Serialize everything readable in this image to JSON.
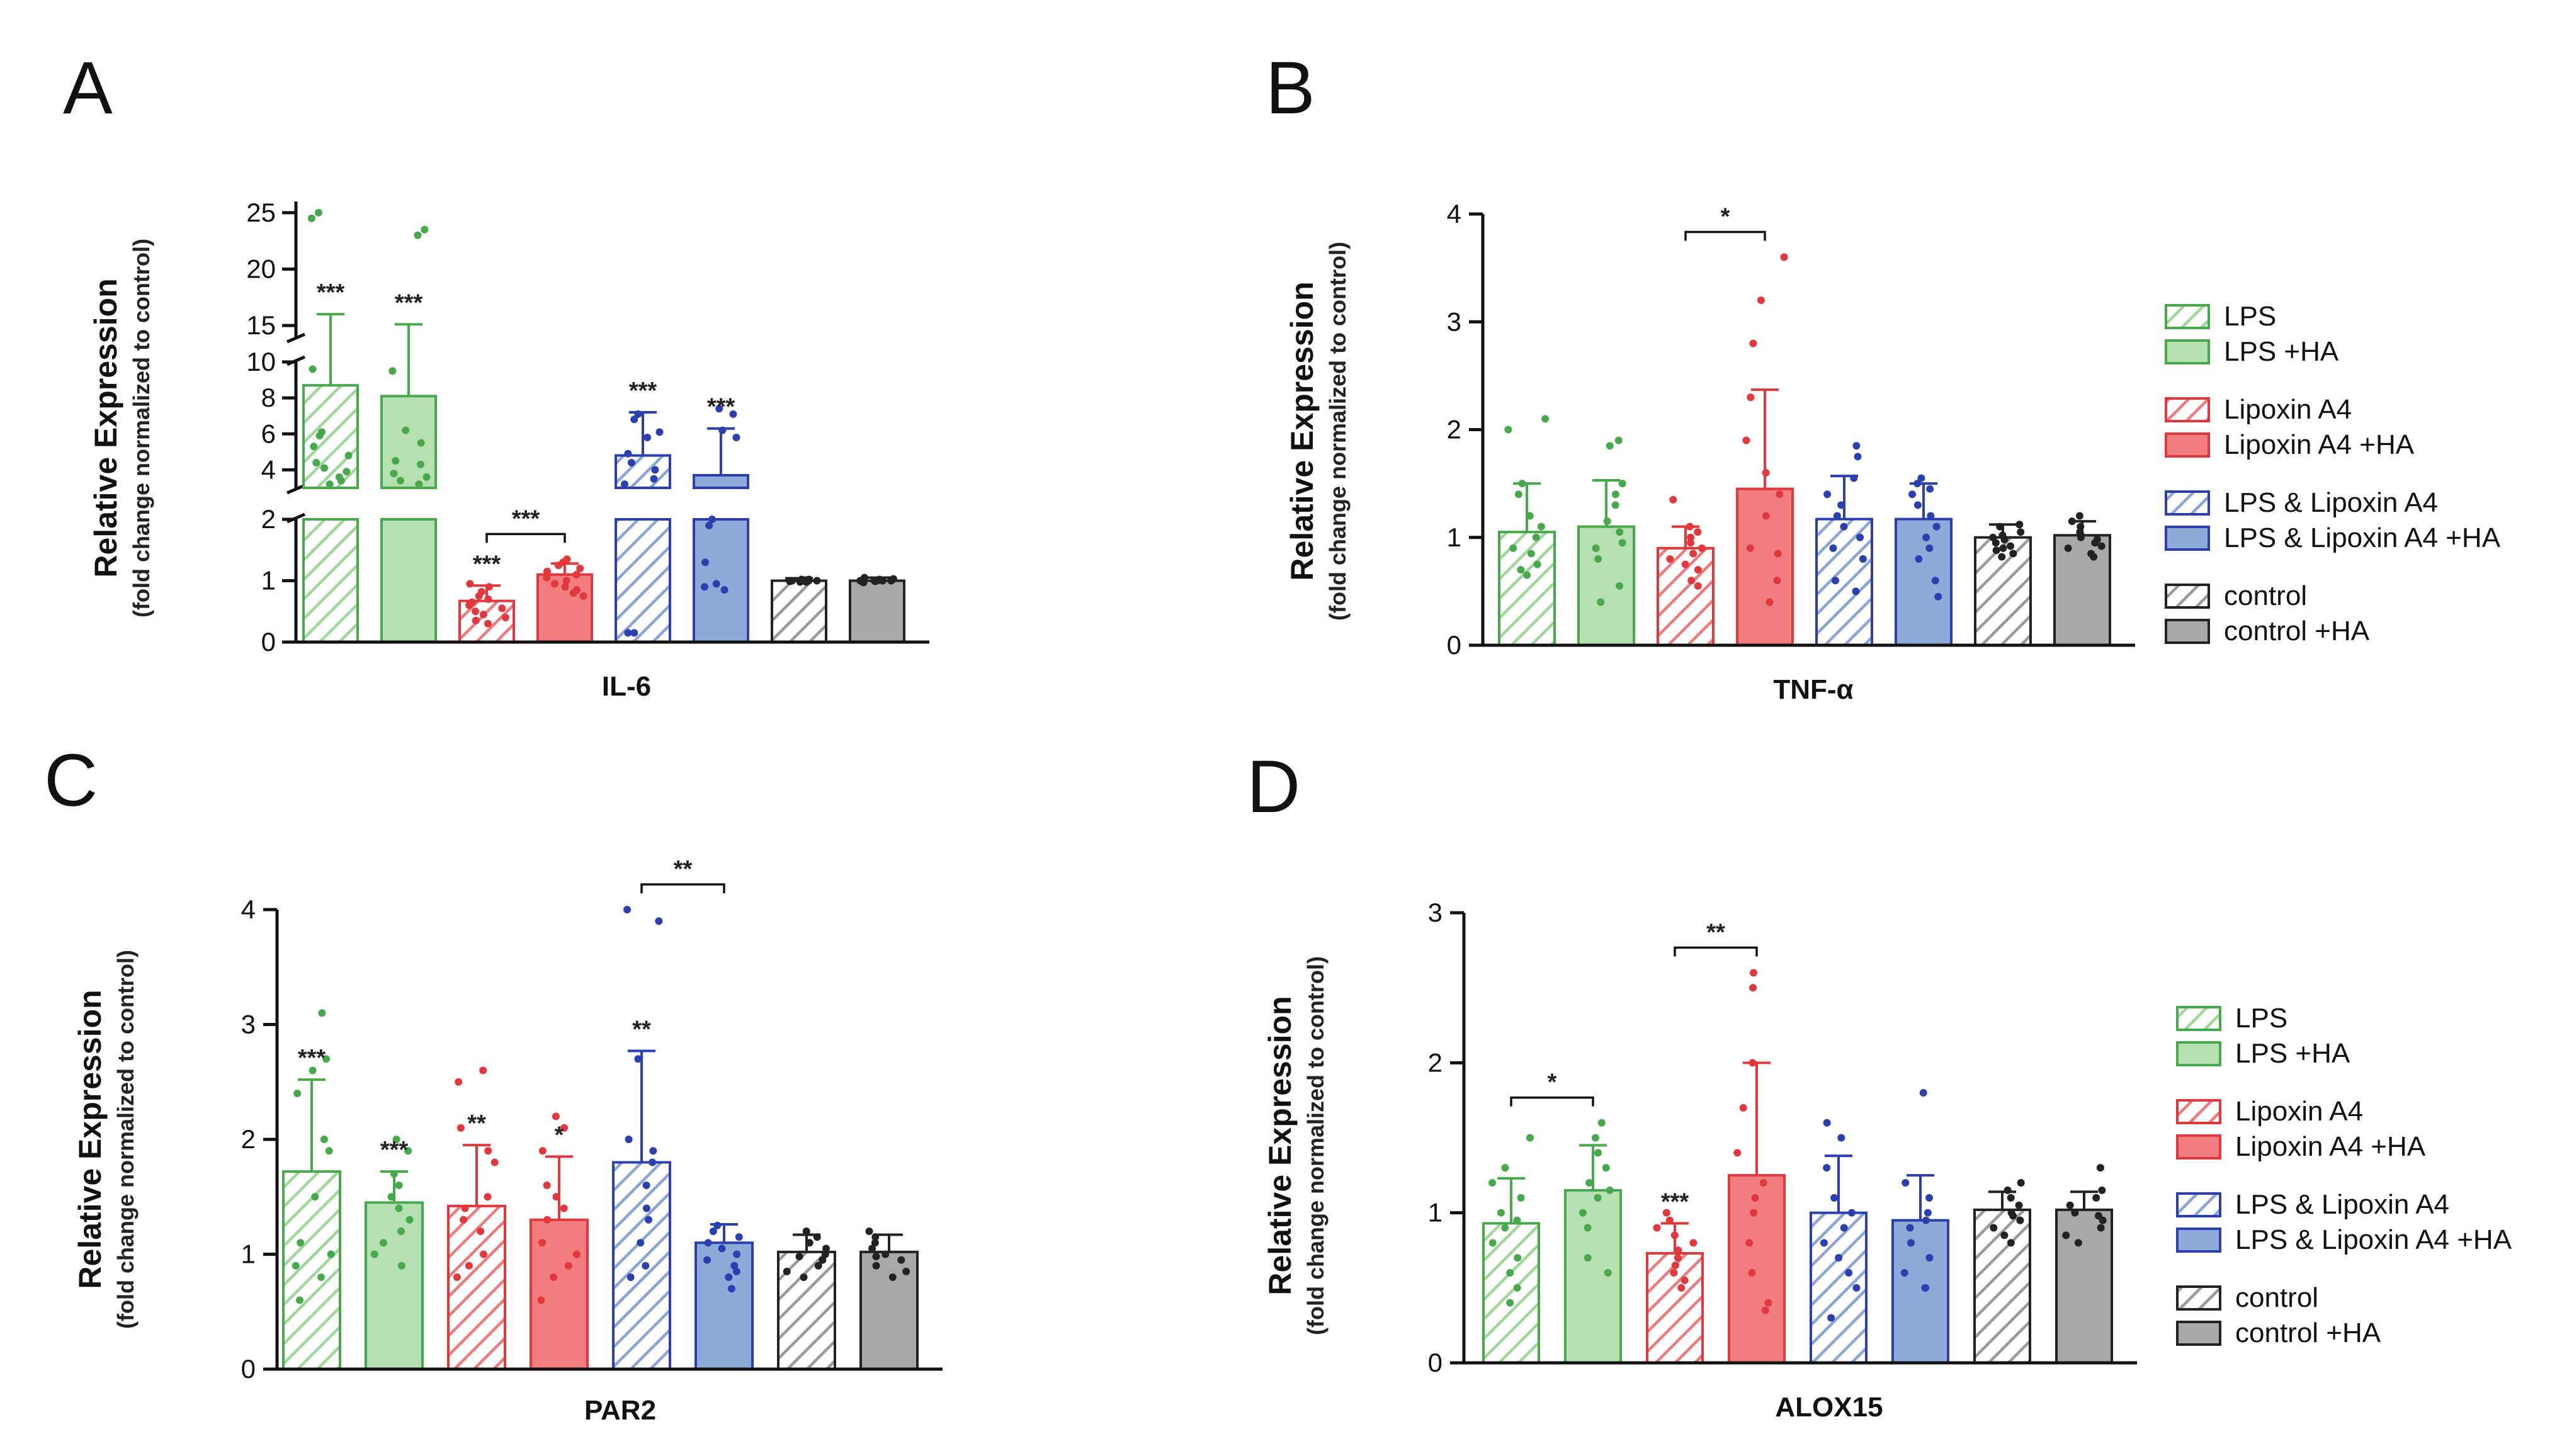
{
  "colors": {
    "LPS": "#47a84c",
    "LPS_fill": "#b6e0b2",
    "LXA": "#e0383c",
    "LXA_fill": "#f17d7f",
    "COMBO": "#2b3fae",
    "COMBO_fill": "#8eaad9",
    "CTRL": "#222222",
    "CTRL_fill": "#a8a8a8"
  },
  "legend": [
    {
      "label": "LPS",
      "group": "LPS",
      "hatch": true
    },
    {
      "label": "LPS +HA",
      "group": "LPS",
      "hatch": false
    },
    {
      "label": "Lipoxin A4",
      "group": "LXA",
      "hatch": true
    },
    {
      "label": "Lipoxin A4 +HA",
      "group": "LXA",
      "hatch": false
    },
    {
      "label": "LPS & Lipoxin A4",
      "group": "COMBO",
      "hatch": true
    },
    {
      "label": "LPS & Lipoxin A4 +HA",
      "group": "COMBO",
      "hatch": false
    },
    {
      "label": "control",
      "group": "CTRL",
      "hatch": true
    },
    {
      "label": "control +HA",
      "group": "CTRL",
      "hatch": false
    }
  ],
  "chart_data": [
    {
      "panel": "A",
      "type": "bar",
      "title": "",
      "xlabel": "IL-6",
      "ylabel": "Relative Expression",
      "ylabel_sub": "(fold change normalized to control)",
      "broken_axis": true,
      "segments": [
        {
          "range": [
            0,
            2
          ],
          "ticks": [
            "0",
            "1",
            "2"
          ]
        },
        {
          "range": [
            3,
            10
          ],
          "ticks": [
            "4",
            "6",
            "8",
            "10"
          ]
        },
        {
          "range": [
            14,
            26
          ],
          "ticks": [
            "15",
            "20",
            "25"
          ]
        }
      ],
      "categories": [
        "LPS",
        "LPS +HA",
        "Lipoxin A4",
        "Lipoxin A4 +HA",
        "LPS & Lipoxin A4",
        "LPS & Lipoxin A4 +HA",
        "control",
        "control +HA"
      ],
      "values": [
        8.7,
        8.1,
        0.67,
        1.1,
        4.8,
        3.7,
        1.0,
        1.0
      ],
      "errors": [
        7.3,
        7.0,
        0.25,
        0.18,
        2.4,
        2.6,
        0.04,
        0.05
      ],
      "points": [
        [
          24.5,
          25,
          9.6,
          6.1,
          5.9,
          5.3,
          4.8,
          4.4,
          4.1,
          3.9,
          3.6,
          3.4,
          3.2
        ],
        [
          23.5,
          23,
          9.5,
          6.2,
          5.5,
          4.5,
          4.3,
          3.8,
          3.6,
          3.4,
          3.2
        ],
        [
          0.95,
          0.9,
          0.82,
          0.75,
          0.7,
          0.65,
          0.6,
          0.55,
          0.5,
          0.45,
          0.4,
          0.35,
          0.3
        ],
        [
          1.35,
          1.3,
          1.25,
          1.2,
          1.15,
          1.1,
          1.05,
          1.0,
          0.95,
          0.9,
          0.85,
          0.8,
          0.75
        ],
        [
          7.1,
          6.8,
          6.1,
          5.8,
          4.9,
          4.4,
          4.0,
          3.5,
          3.2,
          0.15,
          0.15
        ],
        [
          7.4,
          7.1,
          6.2,
          5.8,
          2.0,
          1.9,
          1.3,
          0.95,
          0.9,
          0.85
        ],
        [
          1.0,
          1.0,
          1.02,
          0.98,
          1.0,
          1.01,
          0.99,
          1.0,
          1.0,
          1.0,
          1.02,
          0.98
        ],
        [
          1.05,
          1.0,
          1.02,
          0.98,
          1.0,
          1.03,
          0.97,
          1.0,
          1.0,
          1.01,
          0.99,
          1.0
        ]
      ],
      "significance": [
        "***",
        "***",
        "***",
        "",
        "***",
        "***",
        "",
        ""
      ],
      "brackets": [
        {
          "from": 2,
          "to": 3,
          "label": "***"
        }
      ]
    },
    {
      "panel": "B",
      "type": "bar",
      "title": "",
      "xlabel": "TNF-α",
      "ylabel": "Relative Expression",
      "ylabel_sub": "(fold change normalized to control)",
      "ylim": [
        0,
        4
      ],
      "yticks": [
        "0",
        "1",
        "2",
        "3",
        "4"
      ],
      "categories": [
        "LPS",
        "LPS +HA",
        "Lipoxin A4",
        "Lipoxin A4 +HA",
        "LPS & Lipoxin A4",
        "LPS & Lipoxin A4 +HA",
        "control",
        "control +HA"
      ],
      "values": [
        1.05,
        1.1,
        0.9,
        1.45,
        1.17,
        1.17,
        1.0,
        1.02
      ],
      "errors": [
        0.45,
        0.43,
        0.2,
        0.92,
        0.4,
        0.33,
        0.12,
        0.13
      ],
      "points": [
        [
          2.1,
          2.0,
          1.5,
          1.4,
          1.2,
          1.1,
          1.0,
          0.9,
          0.85,
          0.75,
          0.7,
          0.65
        ],
        [
          1.9,
          1.85,
          1.5,
          1.4,
          1.3,
          1.15,
          1.05,
          0.95,
          0.9,
          0.8,
          0.55,
          0.4
        ],
        [
          1.35,
          1.1,
          1.05,
          1.0,
          0.95,
          0.9,
          0.85,
          0.8,
          0.75,
          0.7,
          0.6,
          0.55
        ],
        [
          3.6,
          3.2,
          2.8,
          2.3,
          1.9,
          1.6,
          1.4,
          1.2,
          0.9,
          0.85,
          0.6,
          0.4
        ],
        [
          1.85,
          1.75,
          1.55,
          1.4,
          1.3,
          1.2,
          1.1,
          1.0,
          0.9,
          0.8,
          0.6,
          0.5
        ],
        [
          1.55,
          1.5,
          1.45,
          1.4,
          1.3,
          1.2,
          1.1,
          1.0,
          0.9,
          0.8,
          0.6,
          0.45
        ],
        [
          1.12,
          1.1,
          1.05,
          1.02,
          1.0,
          0.98,
          0.95,
          0.92,
          0.9,
          0.88,
          0.85,
          0.82
        ],
        [
          1.2,
          1.15,
          1.1,
          1.05,
          1.02,
          1.0,
          0.98,
          0.95,
          0.92,
          0.9,
          0.85,
          0.82
        ]
      ],
      "significance": [
        "",
        "",
        "",
        "",
        "",
        "",
        "",
        ""
      ],
      "brackets": [
        {
          "from": 2,
          "to": 3,
          "label": "*"
        }
      ]
    },
    {
      "panel": "C",
      "type": "bar",
      "title": "",
      "xlabel": "PAR2",
      "ylabel": "Relative Expression",
      "ylabel_sub": "(fold change normalized to control)",
      "ylim": [
        0,
        4
      ],
      "yticks": [
        "0",
        "1",
        "2",
        "3",
        "4"
      ],
      "categories": [
        "LPS",
        "LPS +HA",
        "Lipoxin A4",
        "Lipoxin A4 +HA",
        "LPS & Lipoxin A4",
        "LPS & Lipoxin A4 +HA",
        "control",
        "control +HA"
      ],
      "values": [
        1.72,
        1.45,
        1.42,
        1.3,
        1.8,
        1.1,
        1.02,
        1.02
      ],
      "errors": [
        0.8,
        0.27,
        0.53,
        0.55,
        0.97,
        0.16,
        0.15,
        0.15
      ],
      "points": [
        [
          3.1,
          2.7,
          2.6,
          2.4,
          2.0,
          1.9,
          1.5,
          1.1,
          1.0,
          0.9,
          0.8,
          0.6
        ],
        [
          2.0,
          1.9,
          1.7,
          1.6,
          1.5,
          1.4,
          1.3,
          1.2,
          1.1,
          1.0,
          0.9
        ],
        [
          2.6,
          2.5,
          2.1,
          1.9,
          1.8,
          1.5,
          1.4,
          1.3,
          1.2,
          1.0,
          0.9,
          0.8
        ],
        [
          2.2,
          2.1,
          1.9,
          1.6,
          1.5,
          1.4,
          1.3,
          1.1,
          1.0,
          0.9,
          0.8,
          0.6
        ],
        [
          4.0,
          3.9,
          2.7,
          2.0,
          1.9,
          1.8,
          1.6,
          1.4,
          1.3,
          1.1,
          0.9,
          0.8
        ],
        [
          1.25,
          1.2,
          1.15,
          1.1,
          1.05,
          1.0,
          0.95,
          0.9,
          0.85,
          0.8,
          0.7
        ],
        [
          1.2,
          1.15,
          1.1,
          1.05,
          1.0,
          0.98,
          0.95,
          0.9,
          0.85,
          0.8
        ],
        [
          1.2,
          1.15,
          1.1,
          1.05,
          1.0,
          0.98,
          0.95,
          0.9,
          0.85,
          0.8
        ]
      ],
      "significance": [
        "***",
        "***",
        "**",
        "*",
        "**",
        "",
        "",
        ""
      ],
      "brackets": [
        {
          "from": 4,
          "to": 5,
          "label": "**"
        }
      ]
    },
    {
      "panel": "D",
      "type": "bar",
      "title": "",
      "xlabel": "ALOX15",
      "ylabel": "Relative Expression",
      "ylabel_sub": "(fold change normalized to control)",
      "ylim": [
        0,
        3
      ],
      "yticks": [
        "0",
        "1",
        "2",
        "3"
      ],
      "categories": [
        "LPS",
        "LPS +HA",
        "Lipoxin A4",
        "Lipoxin A4 +HA",
        "LPS & Lipoxin A4",
        "LPS & Lipoxin A4 +HA",
        "control",
        "control +HA"
      ],
      "values": [
        0.93,
        1.15,
        0.73,
        1.25,
        1.0,
        0.95,
        1.02,
        1.02
      ],
      "errors": [
        0.3,
        0.3,
        0.2,
        0.75,
        0.38,
        0.3,
        0.12,
        0.12
      ],
      "points": [
        [
          1.5,
          1.3,
          1.2,
          1.1,
          1.0,
          0.95,
          0.9,
          0.8,
          0.7,
          0.6,
          0.5,
          0.4
        ],
        [
          1.6,
          1.5,
          1.4,
          1.3,
          1.2,
          1.15,
          1.1,
          1.0,
          0.9,
          0.7,
          0.6
        ],
        [
          1.0,
          0.95,
          0.9,
          0.85,
          0.8,
          0.75,
          0.7,
          0.65,
          0.6,
          0.55,
          0.5
        ],
        [
          2.6,
          2.5,
          2.0,
          1.7,
          1.4,
          1.2,
          1.1,
          1.0,
          0.8,
          0.6,
          0.4,
          0.35
        ],
        [
          1.6,
          1.5,
          1.3,
          1.1,
          1.0,
          0.9,
          0.8,
          0.7,
          0.6,
          0.5,
          0.3
        ],
        [
          1.8,
          1.2,
          1.1,
          1.0,
          0.95,
          0.9,
          0.8,
          0.7,
          0.6,
          0.5,
          0.5
        ],
        [
          1.2,
          1.15,
          1.1,
          1.05,
          1.0,
          0.98,
          0.95,
          0.9,
          0.85,
          0.8
        ],
        [
          1.3,
          1.15,
          1.1,
          1.05,
          1.0,
          0.98,
          0.95,
          0.9,
          0.85,
          0.8
        ]
      ],
      "significance": [
        "",
        "",
        "***",
        "",
        "",
        "",
        "",
        ""
      ],
      "brackets": [
        {
          "from": 0,
          "to": 1,
          "label": "*"
        },
        {
          "from": 2,
          "to": 3,
          "label": "**"
        }
      ]
    }
  ]
}
